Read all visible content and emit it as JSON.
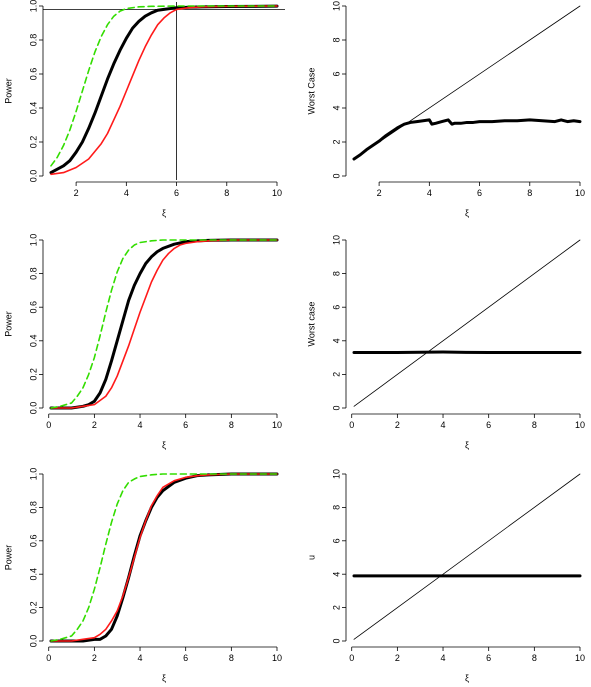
{
  "chart_data": [
    {
      "type": "line",
      "xlabel": "ξ",
      "ylabel": "Power",
      "xlim": [
        1,
        10
      ],
      "ylim": [
        0,
        1
      ],
      "xticks": [
        2,
        4,
        6,
        8,
        10
      ],
      "yticks": [
        0.0,
        0.2,
        0.4,
        0.6,
        0.8,
        1.0
      ],
      "ref_lines": [
        {
          "orientation": "vertical",
          "value": 6
        },
        {
          "orientation": "horizontal",
          "value": 0.98
        }
      ],
      "series": [
        {
          "color": "#000000",
          "style": "solid",
          "width": 3,
          "x": [
            1,
            1.25,
            1.5,
            1.75,
            2,
            2.25,
            2.5,
            2.75,
            3,
            3.25,
            3.5,
            3.75,
            4,
            4.25,
            4.5,
            4.75,
            5,
            5.25,
            5.5,
            5.75,
            6,
            6.5,
            7,
            8,
            9,
            10
          ],
          "y": [
            0.02,
            0.04,
            0.06,
            0.09,
            0.14,
            0.2,
            0.28,
            0.37,
            0.47,
            0.57,
            0.66,
            0.74,
            0.81,
            0.87,
            0.91,
            0.94,
            0.96,
            0.975,
            0.98,
            0.985,
            0.99,
            0.993,
            0.995,
            0.997,
            0.998,
            0.999
          ]
        },
        {
          "color": "#ff1a1a",
          "style": "solid",
          "width": 1.6,
          "x": [
            1,
            1.5,
            2,
            2.5,
            3,
            3.25,
            3.5,
            3.75,
            4,
            4.25,
            4.5,
            4.75,
            5,
            5.25,
            5.5,
            5.75,
            6,
            6.5,
            7,
            8,
            9,
            10
          ],
          "y": [
            0.01,
            0.02,
            0.05,
            0.1,
            0.19,
            0.25,
            0.33,
            0.41,
            0.5,
            0.59,
            0.68,
            0.76,
            0.83,
            0.89,
            0.93,
            0.96,
            0.98,
            0.99,
            0.995,
            0.998,
            0.999,
            1.0
          ]
        },
        {
          "color": "#33dd00",
          "style": "dashed",
          "width": 1.6,
          "x": [
            1,
            1.25,
            1.5,
            1.75,
            2,
            2.25,
            2.5,
            2.75,
            3,
            3.25,
            3.5,
            3.75,
            4,
            4.5,
            5,
            6,
            7,
            8,
            9,
            10
          ],
          "y": [
            0.06,
            0.11,
            0.18,
            0.27,
            0.38,
            0.5,
            0.62,
            0.73,
            0.82,
            0.89,
            0.94,
            0.97,
            0.985,
            0.995,
            0.998,
            1.0,
            1.0,
            1.0,
            1.0,
            1.0
          ]
        }
      ]
    },
    {
      "type": "line",
      "xlabel": "ξ",
      "ylabel": "Worst Case",
      "xlim": [
        1,
        10
      ],
      "ylim": [
        0,
        10
      ],
      "xticks": [
        2,
        4,
        6,
        8,
        10
      ],
      "yticks": [
        0,
        2,
        4,
        6,
        8,
        10
      ],
      "series": [
        {
          "color": "#000000",
          "style": "solid",
          "width": 0.8,
          "x": [
            1,
            10
          ],
          "y": [
            1,
            10
          ]
        },
        {
          "color": "#000000",
          "style": "solid",
          "width": 3,
          "x": [
            1,
            1.25,
            1.5,
            1.75,
            2,
            2.25,
            2.5,
            2.75,
            3,
            3.25,
            3.5,
            3.75,
            4,
            4.1,
            4.25,
            4.5,
            4.75,
            4.9,
            5,
            5.25,
            5.5,
            5.75,
            6,
            6.5,
            7,
            7.5,
            8,
            8.5,
            9,
            9.25,
            9.5,
            9.75,
            10
          ],
          "y": [
            1,
            1.25,
            1.55,
            1.8,
            2.05,
            2.35,
            2.6,
            2.85,
            3.05,
            3.15,
            3.2,
            3.25,
            3.3,
            3.05,
            3.1,
            3.2,
            3.3,
            3.05,
            3.1,
            3.1,
            3.15,
            3.15,
            3.2,
            3.2,
            3.25,
            3.25,
            3.3,
            3.25,
            3.2,
            3.3,
            3.2,
            3.25,
            3.2
          ]
        }
      ]
    },
    {
      "type": "line",
      "xlabel": "ξ",
      "ylabel": "Power",
      "xlim": [
        0.1,
        10
      ],
      "ylim": [
        0,
        1
      ],
      "xticks": [
        0,
        2,
        4,
        6,
        8,
        10
      ],
      "yticks": [
        0.0,
        0.2,
        0.4,
        0.6,
        0.8,
        1.0
      ],
      "series": [
        {
          "color": "#000000",
          "style": "solid",
          "width": 3,
          "x": [
            0.1,
            0.5,
            1,
            1.5,
            1.75,
            2,
            2.25,
            2.5,
            2.75,
            3,
            3.25,
            3.5,
            3.75,
            4,
            4.25,
            4.5,
            4.75,
            5,
            5.5,
            6,
            6.5,
            7,
            8,
            9,
            10
          ],
          "y": [
            0.0,
            0.0,
            0.0,
            0.01,
            0.02,
            0.04,
            0.09,
            0.17,
            0.28,
            0.4,
            0.52,
            0.64,
            0.73,
            0.8,
            0.86,
            0.9,
            0.93,
            0.95,
            0.975,
            0.99,
            0.995,
            0.998,
            1.0,
            1.0,
            1.0
          ]
        },
        {
          "color": "#ff1a1a",
          "style": "solid",
          "width": 1.6,
          "x": [
            0.1,
            0.5,
            1,
            1.5,
            2,
            2.5,
            2.75,
            3,
            3.25,
            3.5,
            3.75,
            4,
            4.25,
            4.5,
            4.75,
            5,
            5.25,
            5.5,
            5.75,
            6,
            6.5,
            7,
            8,
            9,
            10
          ],
          "y": [
            0.0,
            0.0,
            0.0,
            0.01,
            0.02,
            0.07,
            0.12,
            0.19,
            0.28,
            0.37,
            0.47,
            0.57,
            0.66,
            0.75,
            0.82,
            0.88,
            0.92,
            0.95,
            0.97,
            0.98,
            0.99,
            0.995,
            1.0,
            1.0,
            1.0
          ]
        },
        {
          "color": "#33dd00",
          "style": "dashed",
          "width": 1.6,
          "x": [
            0.1,
            0.5,
            1,
            1.25,
            1.5,
            1.75,
            2,
            2.25,
            2.5,
            2.75,
            3,
            3.25,
            3.5,
            3.75,
            4,
            4.5,
            5,
            5.5,
            6,
            7,
            8,
            9,
            10
          ],
          "y": [
            0.0,
            0.01,
            0.03,
            0.07,
            0.12,
            0.2,
            0.3,
            0.43,
            0.57,
            0.7,
            0.81,
            0.89,
            0.94,
            0.97,
            0.985,
            0.995,
            1.0,
            1.0,
            1.0,
            1.0,
            1.0,
            1.0,
            1.0
          ]
        }
      ]
    },
    {
      "type": "line",
      "xlabel": "ξ",
      "ylabel": "Worst case",
      "xlim": [
        0.1,
        10
      ],
      "ylim": [
        0,
        10
      ],
      "xticks": [
        0,
        2,
        4,
        6,
        8,
        10
      ],
      "yticks": [
        0,
        2,
        4,
        6,
        8,
        10
      ],
      "series": [
        {
          "color": "#000000",
          "style": "solid",
          "width": 0.8,
          "x": [
            0.1,
            10
          ],
          "y": [
            0.1,
            10
          ]
        },
        {
          "color": "#000000",
          "style": "solid",
          "width": 3,
          "x": [
            0.1,
            1,
            2,
            3,
            4,
            5,
            6,
            7,
            8,
            9,
            10
          ],
          "y": [
            3.3,
            3.3,
            3.3,
            3.32,
            3.33,
            3.31,
            3.3,
            3.3,
            3.3,
            3.3,
            3.3
          ]
        }
      ]
    },
    {
      "type": "line",
      "xlabel": "ξ",
      "ylabel": "Power",
      "xlim": [
        0.1,
        10
      ],
      "ylim": [
        0,
        1
      ],
      "xticks": [
        0,
        2,
        4,
        6,
        8,
        10
      ],
      "yticks": [
        0.0,
        0.2,
        0.4,
        0.6,
        0.8,
        1.0
      ],
      "series": [
        {
          "color": "#000000",
          "style": "solid",
          "width": 3,
          "x": [
            0.1,
            0.5,
            1,
            1.5,
            2,
            2.25,
            2.5,
            2.75,
            3,
            3.25,
            3.5,
            3.75,
            4,
            4.25,
            4.5,
            4.75,
            5,
            5.5,
            6,
            6.5,
            7,
            8,
            9,
            10
          ],
          "y": [
            0.0,
            0.0,
            0.0,
            0.0,
            0.01,
            0.01,
            0.03,
            0.07,
            0.15,
            0.26,
            0.38,
            0.51,
            0.63,
            0.72,
            0.8,
            0.86,
            0.9,
            0.95,
            0.975,
            0.99,
            0.995,
            1.0,
            1.0,
            1.0
          ]
        },
        {
          "color": "#ff1a1a",
          "style": "solid",
          "width": 1.6,
          "x": [
            0.1,
            0.5,
            1,
            1.5,
            2,
            2.25,
            2.5,
            2.75,
            3,
            3.25,
            3.5,
            3.75,
            4,
            4.25,
            4.5,
            4.75,
            5,
            5.5,
            6,
            6.5,
            7,
            8,
            9,
            10
          ],
          "y": [
            0.0,
            0.0,
            0.0,
            0.01,
            0.02,
            0.04,
            0.07,
            0.12,
            0.18,
            0.27,
            0.38,
            0.5,
            0.62,
            0.72,
            0.81,
            0.87,
            0.92,
            0.96,
            0.98,
            0.99,
            0.995,
            1.0,
            1.0,
            1.0
          ]
        },
        {
          "color": "#33dd00",
          "style": "dashed",
          "width": 1.6,
          "x": [
            0.1,
            0.5,
            1,
            1.25,
            1.5,
            1.75,
            2,
            2.25,
            2.5,
            2.75,
            3,
            3.25,
            3.5,
            3.75,
            4,
            4.5,
            5,
            5.5,
            6,
            7,
            8,
            9,
            10
          ],
          "y": [
            0.0,
            0.01,
            0.03,
            0.07,
            0.12,
            0.2,
            0.31,
            0.44,
            0.58,
            0.71,
            0.82,
            0.9,
            0.95,
            0.97,
            0.985,
            0.995,
            1.0,
            1.0,
            1.0,
            1.0,
            1.0,
            1.0,
            1.0
          ]
        }
      ]
    },
    {
      "type": "line",
      "xlabel": "ξ",
      "ylabel": "u",
      "xlim": [
        0.1,
        10
      ],
      "ylim": [
        0,
        10
      ],
      "xticks": [
        0,
        2,
        4,
        6,
        8,
        10
      ],
      "yticks": [
        0,
        2,
        4,
        6,
        8,
        10
      ],
      "series": [
        {
          "color": "#000000",
          "style": "solid",
          "width": 0.8,
          "x": [
            0.1,
            10
          ],
          "y": [
            0.1,
            10
          ]
        },
        {
          "color": "#000000",
          "style": "solid",
          "width": 3,
          "x": [
            0.1,
            10
          ],
          "y": [
            3.9,
            3.9
          ]
        }
      ]
    }
  ]
}
